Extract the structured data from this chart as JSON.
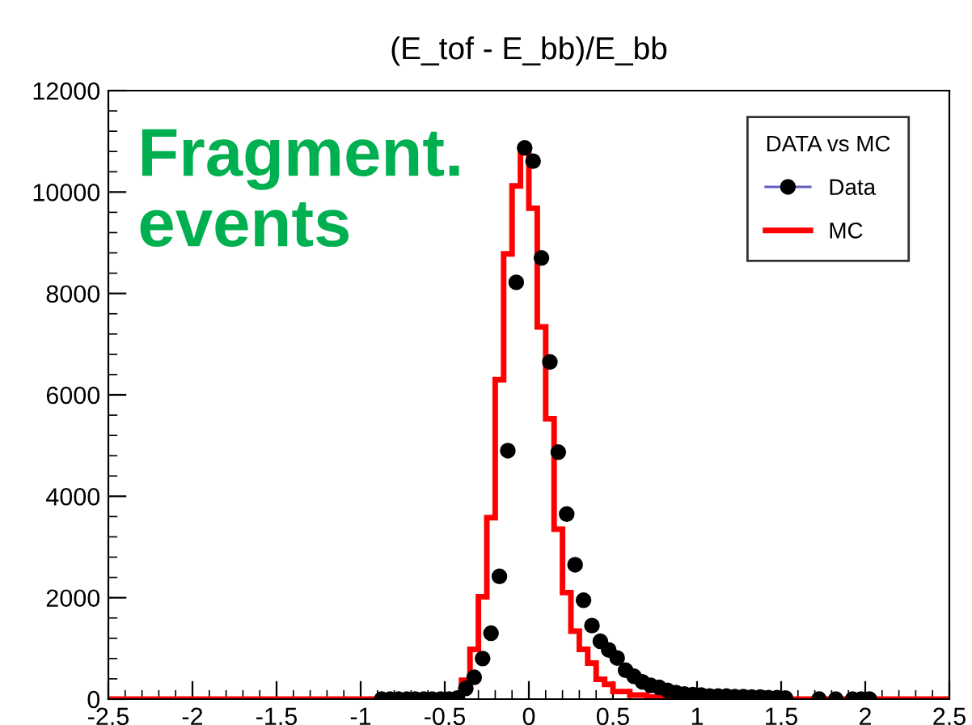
{
  "chart_data": {
    "type": "histogram",
    "title": "(E_tof - E_bb)/E_bb",
    "annotations": [
      "Fragment.\nevents"
    ],
    "legend_title": "DATA vs MC",
    "legend": "top right",
    "grid": false,
    "xlim": [
      -2.5,
      2.5
    ],
    "xticks": [
      -2.5,
      -2,
      -1.5,
      -1,
      -0.5,
      0,
      0.5,
      1,
      1.5,
      2,
      2.5
    ],
    "ylim": [
      0,
      12000
    ],
    "yticks": [
      0,
      2000,
      4000,
      6000,
      8000,
      10000,
      12000
    ],
    "series": [
      {
        "name": "Data",
        "type": "scatter",
        "marker": "circle",
        "color": "#000000",
        "x": [
          -0.875,
          -0.825,
          -0.775,
          -0.725,
          -0.675,
          -0.625,
          -0.575,
          -0.525,
          -0.475,
          -0.425,
          -0.375,
          -0.325,
          -0.275,
          -0.225,
          -0.175,
          -0.125,
          -0.075,
          -0.025,
          0.025,
          0.075,
          0.125,
          0.175,
          0.225,
          0.275,
          0.325,
          0.375,
          0.425,
          0.475,
          0.525,
          0.575,
          0.625,
          0.675,
          0.725,
          0.775,
          0.825,
          0.875,
          0.925,
          0.975,
          1.025,
          1.075,
          1.125,
          1.175,
          1.225,
          1.275,
          1.325,
          1.375,
          1.425,
          1.475,
          1.525,
          1.725,
          1.825,
          1.925,
          1.975,
          2.025
        ],
        "values": [
          0,
          0,
          0,
          0,
          0,
          0,
          0,
          0,
          0,
          20,
          210,
          430,
          800,
          1300,
          2420,
          4900,
          8220,
          10870,
          10610,
          8700,
          6650,
          4870,
          3650,
          2650,
          1950,
          1450,
          1140,
          970,
          810,
          570,
          450,
          340,
          270,
          230,
          170,
          130,
          100,
          90,
          80,
          60,
          60,
          60,
          50,
          50,
          40,
          40,
          30,
          30,
          20,
          0,
          0,
          0,
          0,
          0
        ]
      },
      {
        "name": "MC",
        "color": "#ff0000",
        "bins": [
          -2.5,
          -0.4,
          -0.35,
          -0.3,
          -0.25,
          -0.2,
          -0.15,
          -0.1,
          -0.05,
          0,
          0.05,
          0.1,
          0.15,
          0.2,
          0.25,
          0.3,
          0.35,
          0.4,
          0.45,
          0.5,
          0.55,
          0.6,
          0.65,
          0.7,
          0.75,
          0.8,
          0.85,
          2.5
        ],
        "values": [
          0,
          370,
          980,
          2020,
          3580,
          6300,
          8780,
          10120,
          10850,
          9680,
          7340,
          5530,
          3350,
          2100,
          1340,
          980,
          710,
          390,
          290,
          150,
          150,
          80,
          80,
          40,
          40,
          40,
          0
        ]
      }
    ]
  }
}
